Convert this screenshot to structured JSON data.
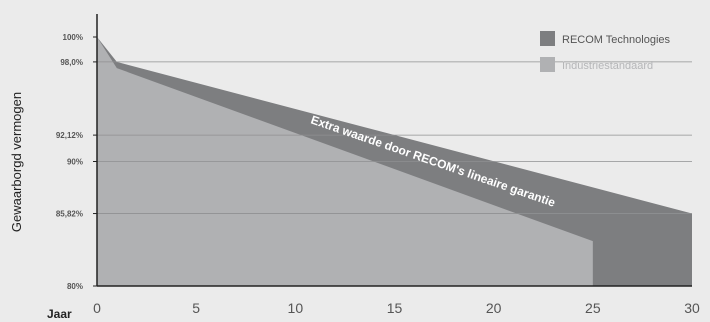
{
  "chart_data": {
    "type": "area",
    "ylabel": "Gewaarborgd vermogen",
    "xlabel": "Jaar",
    "xlim": [
      0,
      30
    ],
    "ylim": [
      80,
      100
    ],
    "x_ticks": [
      {
        "value": 0,
        "label": "0"
      },
      {
        "value": 5,
        "label": "5"
      },
      {
        "value": 10,
        "label": "10"
      },
      {
        "value": 15,
        "label": "15"
      },
      {
        "value": 20,
        "label": "20"
      },
      {
        "value": 25,
        "label": "25"
      },
      {
        "value": 30,
        "label": "30"
      }
    ],
    "y_ticks": [
      {
        "value": 100,
        "label": "100%"
      },
      {
        "value": 98.0,
        "label": "98,0%"
      },
      {
        "value": 92.12,
        "label": "92,12%"
      },
      {
        "value": 90,
        "label": "90%"
      },
      {
        "value": 85.82,
        "label": "85,82%"
      },
      {
        "value": 80,
        "label": "80%"
      }
    ],
    "legend_position": "top-right",
    "series": [
      {
        "name": "RECOM Technologies",
        "color": "#7d7e80",
        "points": [
          [
            0,
            100
          ],
          [
            1,
            98.0
          ],
          [
            30,
            85.82
          ]
        ]
      },
      {
        "name": "Industriestandaard",
        "color": "#b0b1b3",
        "points": [
          [
            0,
            100
          ],
          [
            1,
            97.5
          ],
          [
            25,
            83.6
          ],
          [
            25,
            80
          ]
        ]
      }
    ],
    "annotation": "Extra waarde door RECOM's lineaire garantie"
  }
}
